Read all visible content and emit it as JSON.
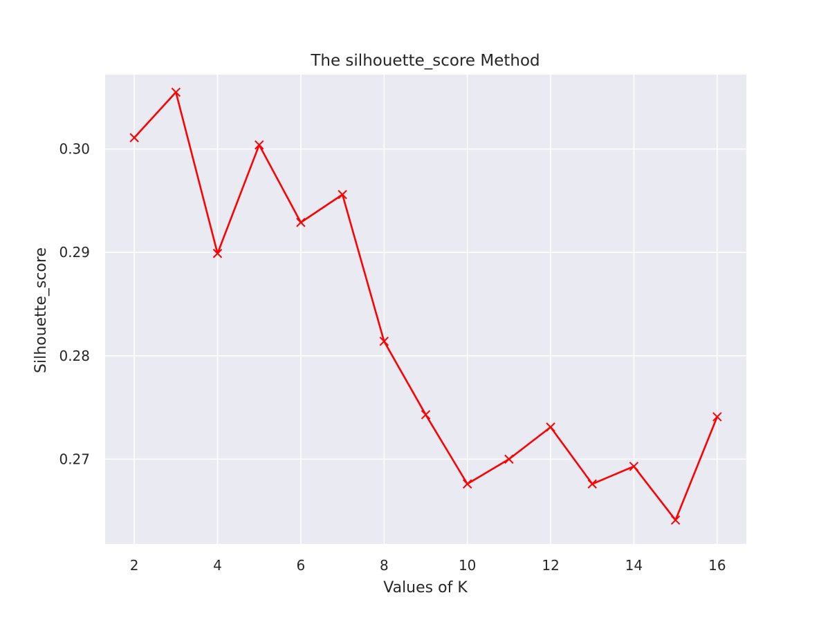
{
  "chart_data": {
    "type": "line",
    "title": "The silhouette_score Method",
    "xlabel": "Values of K",
    "ylabel": "Silhouette_score",
    "x": [
      2,
      3,
      4,
      5,
      6,
      7,
      8,
      9,
      10,
      11,
      12,
      13,
      14,
      15,
      16
    ],
    "series": [
      {
        "values": [
          0.3011,
          0.3055,
          0.2899,
          0.3004,
          0.2929,
          0.2956,
          0.2814,
          0.2743,
          0.2676,
          0.27,
          0.2731,
          0.2676,
          0.2693,
          0.2641,
          0.2741
        ],
        "color": "#ff0000",
        "marker": "x"
      }
    ],
    "xticks": [
      "2",
      "4",
      "6",
      "8",
      "10",
      "12",
      "14",
      "16"
    ],
    "yticks": [
      "0.27",
      "0.28",
      "0.29",
      "0.30"
    ],
    "xlim": [
      1.3,
      16.7
    ],
    "ylim": [
      0.2618,
      0.3072
    ],
    "grid": true,
    "background_color": "#eaeaf2"
  }
}
